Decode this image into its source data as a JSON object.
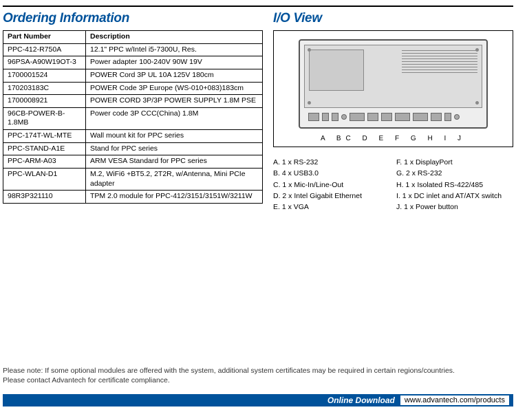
{
  "headings": {
    "ordering": "Ordering Information",
    "io": "I/O View"
  },
  "table": {
    "headers": {
      "part": "Part Number",
      "desc": "Description"
    },
    "rows": [
      {
        "part": "PPC-412-R750A",
        "desc": "12.1\" PPC w/Intel  i5-7300U, Res."
      },
      {
        "part": "96PSA-A90W19OT-3",
        "desc": "Power adapter 100-240V 90W 19V"
      },
      {
        "part": "1700001524",
        "desc": "POWER Cord 3P UL 10A 125V 180cm"
      },
      {
        "part": "170203183C",
        "desc": "POWER Code 3P Europe (WS-010+083)183cm"
      },
      {
        "part": "1700008921",
        "desc": "POWER CORD 3P/3P POWER SUPPLY 1.8M PSE"
      },
      {
        "part": "96CB-POWER-B-1.8MB",
        "desc": "Power code 3P CCC(China) 1.8M"
      },
      {
        "part": "PPC-174T-WL-MTE",
        "desc": "Wall mount kit for PPC series"
      },
      {
        "part": "PPC-STAND-A1E",
        "desc": "Stand for PPC series"
      },
      {
        "part": "PPC-ARM-A03",
        "desc": "ARM VESA Standard for PPC series"
      },
      {
        "part": "PPC-WLAN-D1",
        "desc": "M.2, WiFi6 +BT5.2, 2T2R, w/Antenna, Mini PCIe adapter"
      },
      {
        "part": "98R3P321110",
        "desc": "TPM 2.0 module for PPC-412/3151/3151W/3211W"
      }
    ]
  },
  "io_labels": "A BC   D   E  F     G    H  I J",
  "io_legend": {
    "left": [
      "A.  1 x RS-232",
      "B.  4 x USB3.0",
      "C.  1 x Mic-In/Line-Out",
      "D.  2 x Intel Gigabit Ethernet",
      "E.  1 x VGA"
    ],
    "right": [
      "F.  1 x DisplayPort",
      "G.  2 x RS-232",
      "H.  1 x Isolated RS-422/485",
      "I.   1 x DC inlet and AT/ATX switch",
      "J.  1 x Power button"
    ]
  },
  "note": {
    "line1": "Please note: If some optional modules are offered with the system, additional system certificates may be required in certain regions/countries.",
    "line2": "Please contact Advantech for certificate compliance."
  },
  "footer": {
    "label": "Online Download",
    "url": "www.advantech.com/products"
  },
  "colors": {
    "heading": "#00529b",
    "footer_bg": "#00529b"
  }
}
